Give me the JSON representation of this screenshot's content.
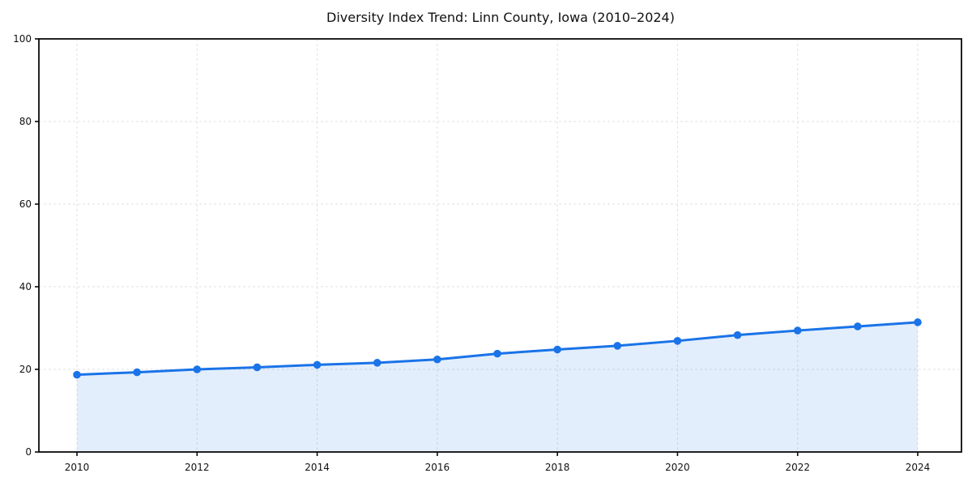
{
  "title": "Diversity Index Trend: Linn County, Iowa (2010–2024)",
  "chart_data": {
    "type": "line",
    "title": "Diversity Index Trend: Linn County, Iowa (2010–2024)",
    "x": [
      2010,
      2011,
      2012,
      2013,
      2014,
      2015,
      2016,
      2017,
      2018,
      2019,
      2020,
      2021,
      2022,
      2023,
      2024
    ],
    "series": [
      {
        "name": "Diversity Index",
        "values": [
          18.7,
          19.3,
          20.0,
          20.5,
          21.1,
          21.6,
          22.4,
          23.8,
          24.8,
          25.7,
          26.9,
          28.3,
          29.4,
          30.4,
          31.4
        ]
      }
    ],
    "xlabel": "",
    "ylabel": "",
    "xtick_labels": [
      "2010",
      "2012",
      "2014",
      "2016",
      "2018",
      "2020",
      "2022",
      "2024"
    ],
    "xticks": [
      2010,
      2012,
      2014,
      2016,
      2018,
      2020,
      2022,
      2024
    ],
    "ytick_labels": [
      "0",
      "20",
      "40",
      "60",
      "80",
      "100"
    ],
    "yticks": [
      0,
      20,
      40,
      60,
      80,
      100
    ],
    "ylim": [
      0,
      100
    ],
    "grid": true,
    "grid_style": "dashed",
    "area_fill": true,
    "legend": "none",
    "colors": {
      "line": "#1a73e8",
      "marker": "#1a73e8",
      "fill": "rgba(26,115,232,0.12)",
      "grid": "#e1e1e1",
      "spine": "#0a0a0a",
      "text": "#111111",
      "background": "#ffffff"
    }
  }
}
